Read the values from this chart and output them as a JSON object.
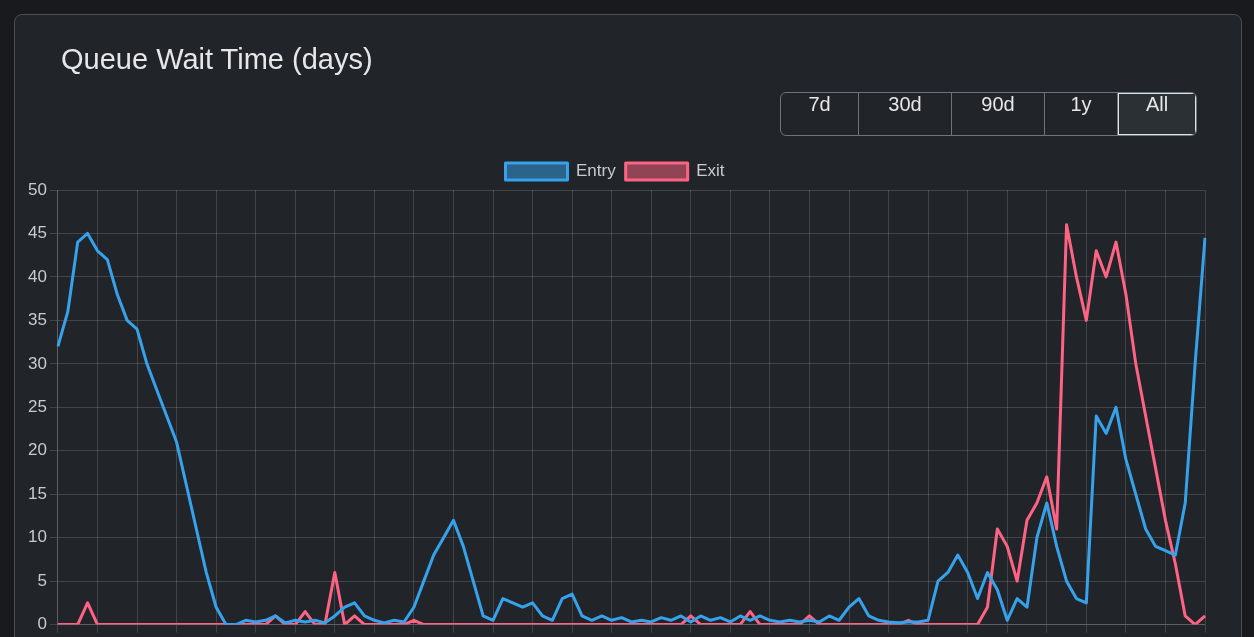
{
  "chart_data": {
    "type": "line",
    "title": "Queue Wait Time (days)",
    "annotations": [
      "7d",
      "30d",
      "90d",
      "1y",
      "All"
    ],
    "categories": [
      null,
      null,
      null,
      null,
      null,
      null,
      null,
      null,
      null,
      null,
      null,
      null,
      null,
      null,
      null,
      null,
      null,
      null,
      null,
      null,
      null,
      null,
      null,
      null,
      null,
      null,
      null,
      null,
      null,
      null,
      null,
      null,
      null,
      null,
      null,
      null,
      null,
      null,
      null,
      null,
      null,
      null,
      null,
      null,
      null,
      null,
      null,
      null,
      null,
      null,
      null,
      null,
      null,
      null,
      null,
      null,
      null,
      null,
      null,
      null,
      null,
      null,
      null,
      null,
      null,
      null,
      null,
      null,
      null,
      null,
      null,
      null,
      null,
      null,
      null,
      null,
      null,
      null,
      null,
      null,
      null,
      null,
      null,
      null,
      null,
      null,
      null,
      null,
      null,
      null,
      null,
      null,
      null,
      null,
      null,
      null,
      null,
      null,
      null,
      null,
      null,
      null,
      null,
      null,
      null,
      null,
      null,
      null,
      null,
      null,
      null,
      null,
      null,
      null,
      null,
      null,
      null
    ],
    "series": [
      {
        "name": "Entry",
        "color": "#36a2eb",
        "values": [
          32,
          36,
          44,
          45,
          43,
          42,
          38,
          35,
          34,
          30,
          27,
          24,
          21,
          16,
          11,
          6,
          2,
          0,
          0,
          0.5,
          0.3,
          0.5,
          1,
          0.2,
          0.5,
          0.3,
          0.5,
          0.2,
          1,
          2,
          2.5,
          1,
          0.5,
          0.2,
          0.5,
          0.3,
          2,
          5,
          8,
          10,
          12,
          9,
          5,
          1,
          0.5,
          3,
          2.5,
          2,
          2.5,
          1,
          0.5,
          3,
          3.5,
          1,
          0.5,
          1,
          0.5,
          0.8,
          0.3,
          0.5,
          0.3,
          0.8,
          0.5,
          1,
          0.3,
          1,
          0.5,
          0.8,
          0.3,
          1,
          0.5,
          1,
          0.5,
          0.3,
          0.5,
          0.3,
          0.5,
          0.3,
          1,
          0.5,
          2,
          3,
          1,
          0.5,
          0.3,
          0.2,
          0.3,
          0.3,
          0.5,
          5,
          6,
          8,
          6,
          3,
          6,
          4,
          0.5,
          3,
          2,
          10,
          14,
          9,
          5,
          3,
          2.5,
          24,
          22,
          25,
          19,
          15,
          11,
          9,
          8.5,
          8,
          14,
          30,
          44.5
        ]
      },
      {
        "name": "Exit",
        "color": "#ff6384",
        "values": [
          0,
          0,
          0,
          2.5,
          0,
          0,
          0,
          0,
          0,
          0,
          0,
          0,
          0,
          0,
          0,
          0,
          0,
          0,
          0,
          0,
          0,
          0,
          1,
          0,
          0,
          1.5,
          0,
          0,
          6,
          0,
          1,
          0,
          0,
          0,
          0,
          0,
          0.5,
          0,
          0,
          0,
          0,
          0,
          0,
          0,
          0,
          0,
          0,
          0,
          0,
          0,
          0,
          0,
          0,
          0,
          0,
          0,
          0,
          0,
          0,
          0,
          0,
          0,
          0,
          0,
          1,
          0,
          0,
          0,
          0,
          0,
          1.5,
          0,
          0,
          0,
          0,
          0,
          1,
          0,
          0,
          0,
          0,
          0,
          0,
          0,
          0,
          0,
          0.5,
          0,
          0,
          0,
          0,
          0,
          0,
          0,
          2,
          11,
          9,
          5,
          12,
          14,
          17,
          11,
          46,
          40,
          35,
          43,
          40,
          44,
          38,
          30,
          24,
          18,
          12,
          7,
          1,
          0,
          1
        ]
      }
    ],
    "ylim": [
      0,
      50
    ],
    "yticks": [
      0,
      5,
      10,
      15,
      20,
      25,
      30,
      35,
      40,
      45,
      50
    ],
    "grid": true,
    "legend": "top",
    "marker": "none",
    "line_style": "solid"
  }
}
